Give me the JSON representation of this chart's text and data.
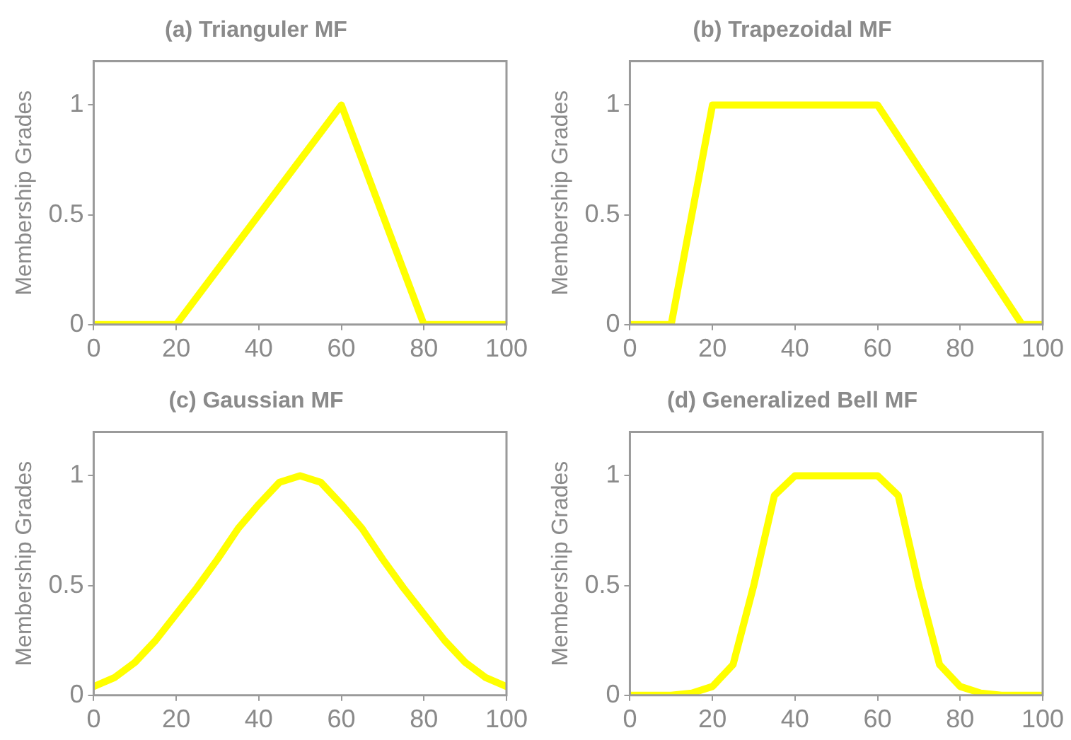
{
  "chart_data": [
    {
      "type": "line",
      "title": "(a) Trianguler MF",
      "ylabel": "Membership Grades",
      "x": [
        0,
        20,
        60,
        80,
        100
      ],
      "series": [
        {
          "color": "#ffff00",
          "values": [
            0,
            0,
            1,
            0,
            0
          ]
        }
      ],
      "xlim": [
        0,
        100
      ],
      "xticks": [
        0,
        20,
        40,
        60,
        80,
        100
      ],
      "ylim": [
        0,
        1.2
      ],
      "yticks": [
        0,
        0.5,
        1
      ],
      "grid": false,
      "marker": "none",
      "line_style": "solid"
    },
    {
      "type": "line",
      "title": "(b) Trapezoidal MF",
      "ylabel": "Membership Grades",
      "x": [
        0,
        10,
        20,
        60,
        95,
        100
      ],
      "series": [
        {
          "color": "#ffff00",
          "values": [
            0,
            0,
            1,
            1,
            0,
            0
          ]
        }
      ],
      "xlim": [
        0,
        100
      ],
      "xticks": [
        0,
        20,
        40,
        60,
        80,
        100
      ],
      "ylim": [
        0,
        1.2
      ],
      "yticks": [
        0,
        0.5,
        1
      ],
      "grid": false,
      "marker": "none",
      "line_style": "solid"
    },
    {
      "type": "line",
      "title": "(c) Gaussian MF",
      "ylabel": "Membership Grades",
      "x": [
        0,
        5,
        10,
        15,
        20,
        25,
        30,
        35,
        40,
        45,
        50,
        55,
        60,
        65,
        70,
        75,
        80,
        85,
        90,
        95,
        100
      ],
      "series": [
        {
          "color": "#ffff00",
          "values": [
            0.04,
            0.08,
            0.15,
            0.25,
            0.37,
            0.49,
            0.62,
            0.76,
            0.87,
            0.97,
            1,
            0.97,
            0.87,
            0.76,
            0.62,
            0.49,
            0.37,
            0.25,
            0.15,
            0.08,
            0.04
          ]
        }
      ],
      "xlim": [
        0,
        100
      ],
      "xticks": [
        0,
        20,
        40,
        60,
        80,
        100
      ],
      "ylim": [
        0,
        1.2
      ],
      "yticks": [
        0,
        0.5,
        1
      ],
      "grid": false,
      "marker": "none",
      "line_style": "solid"
    },
    {
      "type": "line",
      "title": "(d) Generalized Bell MF",
      "ylabel": "Membership Grades",
      "x": [
        0,
        5,
        10,
        15,
        20,
        25,
        30,
        35,
        40,
        45,
        50,
        55,
        60,
        65,
        70,
        75,
        80,
        85,
        90,
        95,
        100
      ],
      "series": [
        {
          "color": "#ffff00",
          "values": [
            0,
            0,
            0,
            0.01,
            0.04,
            0.14,
            0.5,
            0.91,
            1,
            1,
            1,
            1,
            1,
            0.91,
            0.5,
            0.14,
            0.04,
            0.01,
            0,
            0,
            0
          ]
        }
      ],
      "xlim": [
        0,
        100
      ],
      "xticks": [
        0,
        20,
        40,
        60,
        80,
        100
      ],
      "ylim": [
        0,
        1.2
      ],
      "yticks": [
        0,
        0.5,
        1
      ],
      "grid": false,
      "marker": "none",
      "line_style": "solid"
    }
  ]
}
